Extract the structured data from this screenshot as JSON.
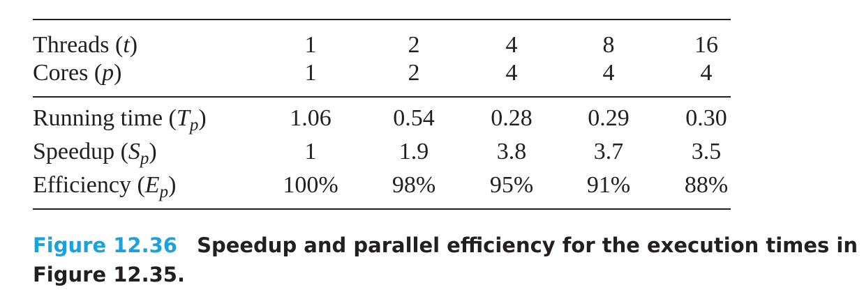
{
  "table": {
    "header_rows": [
      {
        "label": {
          "pre": "Threads (",
          "var": "t",
          "post": ")"
        },
        "cells": [
          "1",
          "2",
          "4",
          "8",
          "16"
        ]
      },
      {
        "label": {
          "pre": "Cores (",
          "var": "p",
          "post": ")"
        },
        "cells": [
          "1",
          "2",
          "4",
          "4",
          "4"
        ]
      }
    ],
    "body_rows": [
      {
        "label": {
          "pre": "Running time (",
          "var": "T",
          "sub": "p",
          "post": ")"
        },
        "cells": [
          "1.06",
          "0.54",
          "0.28",
          "0.29",
          "0.30"
        ]
      },
      {
        "label": {
          "pre": "Speedup (",
          "var": "S",
          "sub": "p",
          "post": ")"
        },
        "cells": [
          "1",
          "1.9",
          "3.8",
          "3.7",
          "3.5"
        ]
      },
      {
        "label": {
          "pre": "Efficiency (",
          "var": "E",
          "sub": "p",
          "post": ")"
        },
        "cells": [
          "100%",
          "98%",
          "95%",
          "91%",
          "88%"
        ]
      }
    ]
  },
  "caption": {
    "label": "Figure 12.36",
    "lines": [
      "Speedup and parallel efficiency for the execution times in",
      "Figure 12.35."
    ]
  }
}
